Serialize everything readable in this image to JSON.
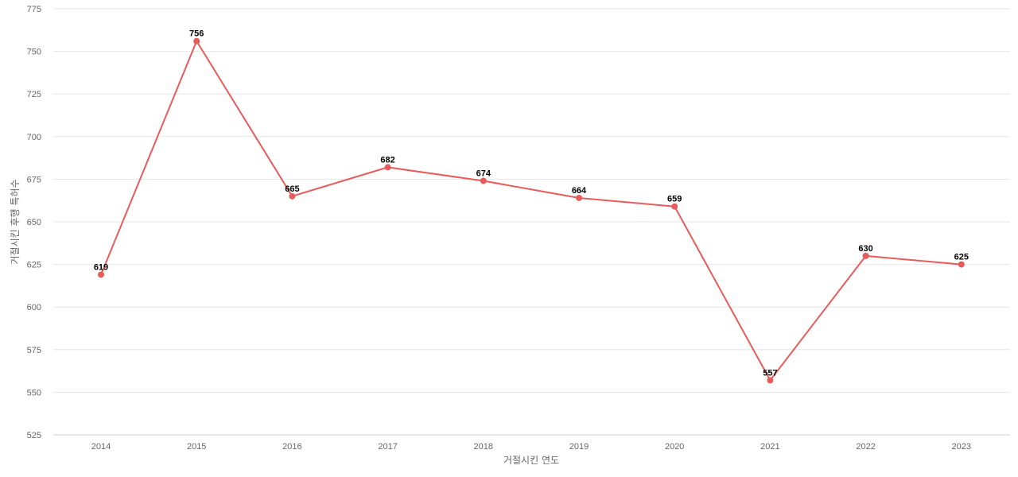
{
  "chart_data": {
    "type": "line",
    "title": "",
    "xlabel": "거절시킨 연도",
    "ylabel": "거절시킨 후행 특허수",
    "categories": [
      "2014",
      "2015",
      "2016",
      "2017",
      "2018",
      "2019",
      "2020",
      "2021",
      "2022",
      "2023"
    ],
    "series": [
      {
        "values": [
          619,
          756,
          665,
          682,
          674,
          664,
          659,
          557,
          630,
          625
        ],
        "color": "#e85b5b"
      }
    ],
    "ylim": [
      525,
      775
    ],
    "yticks": [
      525,
      550,
      575,
      600,
      625,
      650,
      675,
      700,
      725,
      750,
      775
    ],
    "grid": true,
    "legend": "none",
    "data_labels": true
  }
}
